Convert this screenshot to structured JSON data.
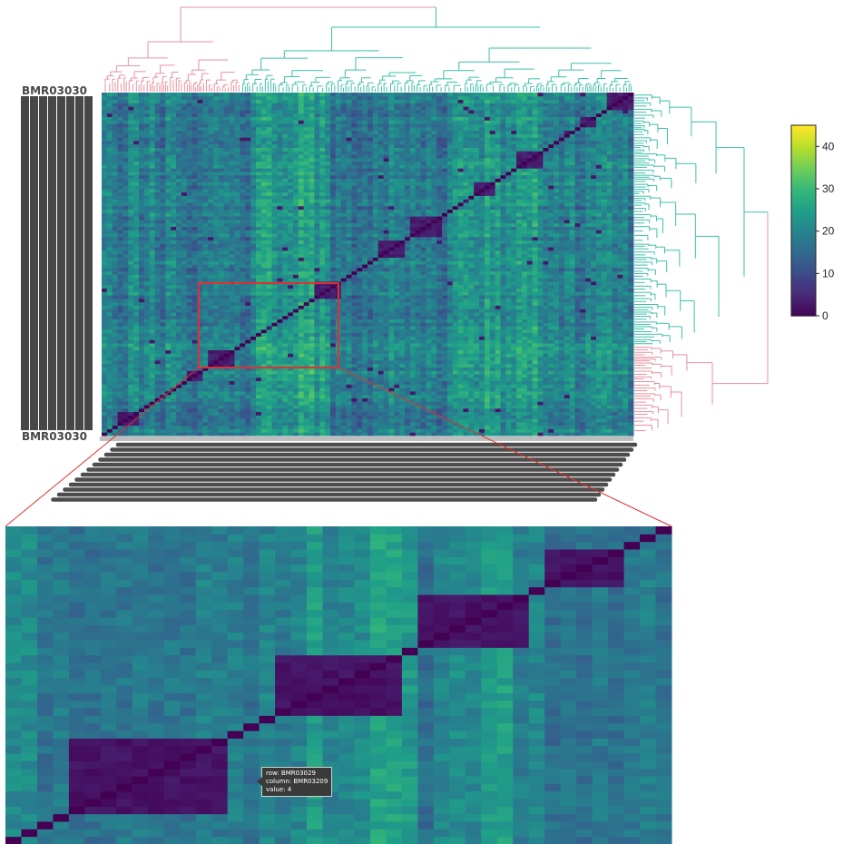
{
  "chart_data": {
    "type": "heatmap",
    "title": "",
    "xlabel": "",
    "ylabel": "",
    "value_range": [
      0,
      45
    ],
    "colorbar": {
      "ticks": [
        0,
        10,
        20,
        30,
        40
      ],
      "colormap": "viridis",
      "placement": "right"
    },
    "dendrogram_cluster_colors": [
      "#e8909f",
      "#3dbfaa"
    ],
    "row_label_sample_top": "BMR03030",
    "row_label_sample_bottom": "BMR03030",
    "zoom_box_color": "#e03030",
    "tooltip": {
      "row": "BMR03029",
      "column": "BMR03209",
      "value": 4,
      "row_text": "row: BMR03029",
      "column_text": "column: BMR03209",
      "value_text": "value:  4"
    }
  }
}
